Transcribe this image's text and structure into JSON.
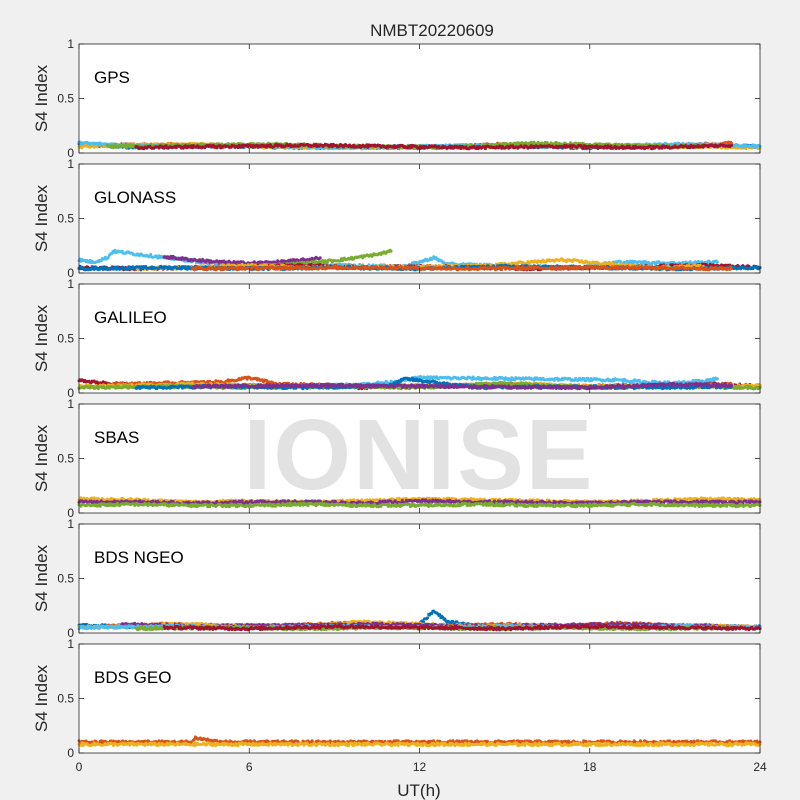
{
  "chart_data": {
    "type": "scatter",
    "title": "NMBT20220609",
    "xlabel": "UT(h)",
    "ylabel": "S4 Index",
    "xlim": [
      0,
      24
    ],
    "ylim": [
      0,
      1
    ],
    "xticks": [
      "0",
      "6",
      "12",
      "18",
      "24"
    ],
    "yticks": [
      "0",
      "0.5",
      "1"
    ],
    "watermark": "IONISE",
    "grid": false,
    "panels": [
      {
        "name": "GPS",
        "series": [
          {
            "color": "#0072bd",
            "x": [
              0,
              2,
              4,
              6,
              8,
              10,
              12,
              14,
              16,
              18,
              20,
              22,
              24
            ],
            "y": [
              0.08,
              0.05,
              0.07,
              0.06,
              0.05,
              0.06,
              0.05,
              0.07,
              0.06,
              0.05,
              0.06,
              0.07,
              0.06
            ]
          },
          {
            "color": "#d95319",
            "x": [
              1,
              3,
              5,
              7,
              9,
              11,
              13,
              15,
              17,
              19,
              21,
              23
            ],
            "y": [
              0.07,
              0.08,
              0.06,
              0.07,
              0.06,
              0.05,
              0.06,
              0.08,
              0.07,
              0.06,
              0.07,
              0.09
            ]
          },
          {
            "color": "#edb120",
            "x": [
              0,
              2,
              4,
              6,
              8,
              10,
              12,
              14,
              16,
              18,
              20,
              22,
              24
            ],
            "y": [
              0.06,
              0.07,
              0.08,
              0.06,
              0.05,
              0.05,
              0.06,
              0.05,
              0.07,
              0.06,
              0.05,
              0.06,
              0.05
            ]
          },
          {
            "color": "#4dbeee",
            "x": [
              0,
              3,
              6,
              9,
              12,
              15,
              18,
              21,
              24
            ],
            "y": [
              0.09,
              0.06,
              0.07,
              0.05,
              0.06,
              0.07,
              0.06,
              0.08,
              0.06
            ]
          },
          {
            "color": "#77ac30",
            "x": [
              1,
              4,
              7,
              10,
              13,
              16,
              19,
              22
            ],
            "y": [
              0.06,
              0.07,
              0.08,
              0.06,
              0.05,
              0.09,
              0.07,
              0.06
            ]
          },
          {
            "color": "#a2142f",
            "x": [
              2,
              5,
              8,
              11,
              14,
              17,
              20,
              23
            ],
            "y": [
              0.05,
              0.06,
              0.07,
              0.06,
              0.05,
              0.06,
              0.05,
              0.07
            ]
          }
        ]
      },
      {
        "name": "GLONASS",
        "series": [
          {
            "color": "#4dbeee",
            "x": [
              0,
              0.5,
              1.0,
              1.2,
              5.0,
              7.0,
              9.0,
              11.5,
              12.5,
              13.0,
              17.5,
              19.0,
              21.0,
              22.5
            ],
            "y": [
              0.12,
              0.1,
              0.14,
              0.2,
              0.08,
              0.09,
              0.07,
              0.06,
              0.14,
              0.08,
              0.05,
              0.1,
              0.09,
              0.1
            ]
          },
          {
            "color": "#7e2f8e",
            "x": [
              3.0,
              4.0,
              5.0,
              6.0,
              7.0,
              8.0,
              8.5
            ],
            "y": [
              0.15,
              0.12,
              0.1,
              0.09,
              0.1,
              0.12,
              0.14
            ]
          },
          {
            "color": "#77ac30",
            "x": [
              6.0,
              7.5,
              8.5,
              9.5,
              10.5,
              11.0
            ],
            "y": [
              0.06,
              0.08,
              0.1,
              0.13,
              0.17,
              0.2
            ]
          },
          {
            "color": "#a2142f",
            "x": [
              0,
              2,
              4,
              6,
              8,
              10,
              12,
              14,
              16,
              18,
              20,
              22,
              24
            ],
            "y": [
              0.05,
              0.04,
              0.05,
              0.06,
              0.07,
              0.05,
              0.06,
              0.05,
              0.04,
              0.05,
              0.06,
              0.07,
              0.05
            ]
          },
          {
            "color": "#edb120",
            "x": [
              2,
              4,
              6,
              8,
              14,
              16,
              17,
              20,
              22
            ],
            "y": [
              0.04,
              0.05,
              0.07,
              0.05,
              0.06,
              0.1,
              0.12,
              0.05,
              0.06
            ]
          },
          {
            "color": "#0072bd",
            "x": [
              0,
              3,
              6,
              9,
              12,
              15,
              18,
              21,
              24
            ],
            "y": [
              0.04,
              0.05,
              0.04,
              0.05,
              0.04,
              0.06,
              0.05,
              0.04,
              0.05
            ]
          },
          {
            "color": "#d95319",
            "x": [
              4,
              10,
              14,
              18,
              23
            ],
            "y": [
              0.04,
              0.05,
              0.04,
              0.05,
              0.04
            ]
          }
        ]
      },
      {
        "name": "GALILEO",
        "series": [
          {
            "color": "#a2142f",
            "x": [
              0,
              0.5,
              1.0,
              2.0,
              4.0,
              6.0,
              8.0,
              10.0,
              12.0,
              14.0,
              16.0,
              18.0,
              20.0,
              22.0,
              24.0
            ],
            "y": [
              0.12,
              0.1,
              0.09,
              0.07,
              0.06,
              0.07,
              0.06,
              0.05,
              0.06,
              0.07,
              0.06,
              0.05,
              0.07,
              0.09,
              0.06
            ]
          },
          {
            "color": "#d95319",
            "x": [
              1.0,
              3.0,
              5.0,
              5.5,
              6.0,
              7.0,
              9.0,
              11.0,
              13.0,
              15.0,
              17.0,
              19.0,
              21.0,
              23.0
            ],
            "y": [
              0.08,
              0.09,
              0.1,
              0.12,
              0.14,
              0.08,
              0.07,
              0.06,
              0.07,
              0.08,
              0.06,
              0.07,
              0.06,
              0.08
            ]
          },
          {
            "color": "#edb120",
            "x": [
              0,
              2,
              4,
              6,
              8,
              10,
              12,
              14,
              16,
              18,
              20,
              22,
              24
            ],
            "y": [
              0.06,
              0.07,
              0.08,
              0.07,
              0.06,
              0.07,
              0.06,
              0.07,
              0.08,
              0.06,
              0.07,
              0.06,
              0.07
            ]
          },
          {
            "color": "#4dbeee",
            "x": [
              8,
              10,
              11,
              12,
              19,
              20,
              21,
              22,
              22.5
            ],
            "y": [
              0.06,
              0.08,
              0.1,
              0.14,
              0.12,
              0.1,
              0.09,
              0.11,
              0.13
            ]
          },
          {
            "color": "#77ac30",
            "x": [
              0,
              3,
              6,
              9,
              12,
              15,
              18,
              21,
              24
            ],
            "y": [
              0.05,
              0.06,
              0.05,
              0.06,
              0.05,
              0.09,
              0.05,
              0.06,
              0.05
            ]
          },
          {
            "color": "#0072bd",
            "x": [
              2,
              5,
              8,
              11,
              11.5,
              14,
              17,
              20,
              23
            ],
            "y": [
              0.05,
              0.06,
              0.05,
              0.07,
              0.13,
              0.05,
              0.06,
              0.05,
              0.06
            ]
          },
          {
            "color": "#7e2f8e",
            "x": [
              4,
              9,
              13,
              18,
              21,
              23
            ],
            "y": [
              0.06,
              0.07,
              0.06,
              0.05,
              0.08,
              0.07
            ]
          }
        ]
      },
      {
        "name": "SBAS",
        "series": [
          {
            "color": "#edb120",
            "x": [
              0,
              2,
              4,
              6,
              8,
              10,
              12,
              14,
              16,
              18,
              20,
              22,
              24
            ],
            "y": [
              0.13,
              0.12,
              0.1,
              0.11,
              0.1,
              0.11,
              0.13,
              0.12,
              0.11,
              0.1,
              0.11,
              0.13,
              0.12
            ]
          },
          {
            "color": "#7e2f8e",
            "x": [
              0,
              2,
              4,
              6,
              8,
              10,
              12,
              14,
              16,
              18,
              20,
              22,
              24
            ],
            "y": [
              0.1,
              0.1,
              0.09,
              0.1,
              0.1,
              0.09,
              0.11,
              0.1,
              0.1,
              0.09,
              0.1,
              0.1,
              0.1
            ]
          },
          {
            "color": "#77ac30",
            "x": [
              0,
              2,
              4,
              6,
              8,
              10,
              12,
              14,
              16,
              18,
              20,
              22,
              24
            ],
            "y": [
              0.07,
              0.08,
              0.07,
              0.07,
              0.08,
              0.07,
              0.07,
              0.08,
              0.07,
              0.07,
              0.08,
              0.07,
              0.07
            ]
          }
        ]
      },
      {
        "name": "BDS NGEO",
        "series": [
          {
            "color": "#0072bd",
            "x": [
              0,
              2,
              4,
              6,
              8,
              10,
              12,
              12.5,
              13,
              14,
              16,
              18,
              20,
              22,
              24
            ],
            "y": [
              0.07,
              0.06,
              0.05,
              0.07,
              0.06,
              0.07,
              0.08,
              0.2,
              0.1,
              0.07,
              0.06,
              0.05,
              0.06,
              0.05,
              0.06
            ]
          },
          {
            "color": "#d95319",
            "x": [
              1,
              3,
              5,
              7,
              9,
              11,
              13,
              15,
              17,
              19,
              21,
              23
            ],
            "y": [
              0.06,
              0.08,
              0.07,
              0.06,
              0.09,
              0.07,
              0.06,
              0.08,
              0.06,
              0.09,
              0.07,
              0.06
            ]
          },
          {
            "color": "#edb120",
            "x": [
              0,
              2,
              4,
              6,
              8,
              10,
              12,
              14,
              16,
              18,
              20,
              22,
              24
            ],
            "y": [
              0.05,
              0.07,
              0.08,
              0.06,
              0.07,
              0.1,
              0.08,
              0.06,
              0.07,
              0.05,
              0.06,
              0.07,
              0.05
            ]
          },
          {
            "color": "#7e2f8e",
            "x": [
              1.5,
              4.5,
              7.5,
              10.5,
              13.5,
              16.5,
              19.5,
              22.5
            ],
            "y": [
              0.08,
              0.06,
              0.07,
              0.08,
              0.06,
              0.07,
              0.08,
              0.06
            ]
          },
          {
            "color": "#4dbeee",
            "x": [
              0,
              3,
              6,
              9,
              12,
              15,
              18,
              21,
              24
            ],
            "y": [
              0.05,
              0.06,
              0.05,
              0.06,
              0.05,
              0.06,
              0.05,
              0.06,
              0.05
            ]
          },
          {
            "color": "#77ac30",
            "x": [
              2,
              5,
              8,
              11,
              14,
              17,
              20,
              23
            ],
            "y": [
              0.04,
              0.05,
              0.04,
              0.05,
              0.04,
              0.05,
              0.04,
              0.05
            ]
          },
          {
            "color": "#a2142f",
            "x": [
              3,
              6,
              9,
              12,
              15,
              18,
              21,
              24
            ],
            "y": [
              0.05,
              0.04,
              0.06,
              0.05,
              0.04,
              0.06,
              0.05,
              0.04
            ]
          }
        ]
      },
      {
        "name": "BDS GEO",
        "series": [
          {
            "color": "#d95319",
            "x": [
              0,
              1,
              2,
              3,
              4,
              4.1,
              5,
              6,
              7,
              8,
              9,
              10,
              11,
              12,
              13,
              14,
              15,
              16,
              17,
              18,
              19,
              20,
              21,
              22,
              23,
              24
            ],
            "y": [
              0.1,
              0.1,
              0.1,
              0.1,
              0.1,
              0.14,
              0.1,
              0.1,
              0.1,
              0.1,
              0.1,
              0.1,
              0.1,
              0.1,
              0.1,
              0.1,
              0.1,
              0.1,
              0.1,
              0.1,
              0.1,
              0.1,
              0.1,
              0.1,
              0.1,
              0.1
            ]
          },
          {
            "color": "#edb120",
            "x": [
              0,
              1,
              2,
              3,
              4,
              5,
              6,
              7,
              8,
              9,
              10,
              11,
              12,
              13,
              14,
              15,
              16,
              17,
              18,
              19,
              20,
              21,
              22,
              23,
              24
            ],
            "y": [
              0.08,
              0.08,
              0.08,
              0.08,
              0.08,
              0.08,
              0.08,
              0.08,
              0.08,
              0.08,
              0.08,
              0.08,
              0.08,
              0.08,
              0.08,
              0.08,
              0.08,
              0.08,
              0.08,
              0.08,
              0.08,
              0.08,
              0.08,
              0.08,
              0.08
            ]
          }
        ]
      }
    ]
  }
}
